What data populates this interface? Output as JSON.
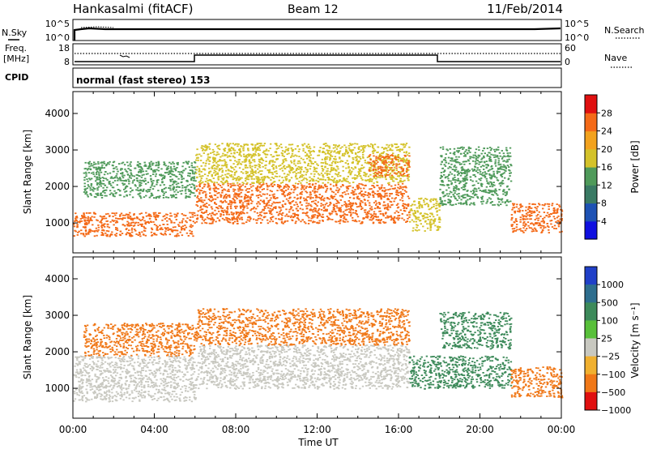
{
  "header": {
    "station": "Hankasalmi (fitACF)",
    "beam": "Beam 12",
    "date": "11/Feb/2014"
  },
  "top_panels": {
    "nsky_label": "N.Sky",
    "nsky_ticks": [
      "10^5",
      "10^0"
    ],
    "nsearch_label": "N.Search",
    "nsearch_ticks": [
      "10^5",
      "10^0"
    ],
    "freq_label_1": "Freq.",
    "freq_label_2": "[MHz]",
    "freq_ticks": [
      "18",
      "8"
    ],
    "nave_label": "Nave",
    "nave_ticks": [
      "60",
      "0"
    ],
    "cpid_label": "CPID",
    "cpid_value": "normal (fast stereo) 153"
  },
  "chart_data": [
    {
      "type": "heatmap",
      "parameter": "power",
      "ylabel": "Slant Range [km]",
      "ylim": [
        180,
        4600
      ],
      "yticks": [
        "1000",
        "2000",
        "3000",
        "4000"
      ],
      "xlim": [
        "00:00",
        "24:00"
      ],
      "colorbar": {
        "label": "Power [dB]",
        "ticks": [
          "4",
          "8",
          "12",
          "16",
          "20",
          "24",
          "28"
        ],
        "colors": [
          "#1010e0",
          "#1e52b4",
          "#3a7a64",
          "#4f9a5a",
          "#d4c22a",
          "#f2a21e",
          "#f46a18",
          "#e01010"
        ]
      },
      "echo_regions": [
        {
          "t_start": 0.0,
          "t_end": 6.0,
          "r_low": 650,
          "r_high": 1300,
          "power_db": 27
        },
        {
          "t_start": 0.5,
          "t_end": 6.0,
          "r_low": 1700,
          "r_high": 2700,
          "power_db": 14
        },
        {
          "t_start": 6.0,
          "t_end": 16.5,
          "r_low": 1000,
          "r_high": 2100,
          "power_db": 24
        },
        {
          "t_start": 6.0,
          "t_end": 16.5,
          "r_low": 2100,
          "r_high": 3200,
          "power_db": 16
        },
        {
          "t_start": 14.5,
          "t_end": 16.5,
          "r_low": 2300,
          "r_high": 2900,
          "power_db": 27
        },
        {
          "t_start": 16.5,
          "t_end": 18.0,
          "r_low": 800,
          "r_high": 1700,
          "power_db": 18
        },
        {
          "t_start": 18.0,
          "t_end": 21.5,
          "r_low": 1500,
          "r_high": 3100,
          "power_db": 12
        },
        {
          "t_start": 21.5,
          "t_end": 24.0,
          "r_low": 750,
          "r_high": 1550,
          "power_db": 27
        }
      ]
    },
    {
      "type": "heatmap",
      "parameter": "velocity",
      "ylabel": "Slant Range [km]",
      "xlabel": "Time UT",
      "ylim": [
        180,
        4600
      ],
      "yticks": [
        "1000",
        "2000",
        "3000",
        "4000"
      ],
      "xticks": [
        "00:00",
        "04:00",
        "08:00",
        "12:00",
        "16:00",
        "20:00",
        "00:00"
      ],
      "xlim": [
        "00:00",
        "24:00"
      ],
      "colorbar": {
        "label": "Velocity [m s⁻¹]",
        "ticks": [
          "1000",
          "500",
          "100",
          "25",
          "−25",
          "−100",
          "−500",
          "−1000"
        ],
        "colors": [
          "#2040c8",
          "#2e6e8e",
          "#3d8a5a",
          "#58c03a",
          "#c8c8c0",
          "#f0b030",
          "#f07818",
          "#e01010"
        ]
      },
      "echo_regions": [
        {
          "t_start": 0.0,
          "t_end": 6.0,
          "r_low": 650,
          "r_high": 1900,
          "velocity": 0
        },
        {
          "t_start": 0.5,
          "t_end": 6.0,
          "r_low": 1900,
          "r_high": 2800,
          "velocity": -250
        },
        {
          "t_start": 6.0,
          "t_end": 16.5,
          "r_low": 1000,
          "r_high": 2200,
          "velocity": 0
        },
        {
          "t_start": 6.0,
          "t_end": 16.5,
          "r_low": 2200,
          "r_high": 3200,
          "velocity": -250
        },
        {
          "t_start": 16.5,
          "t_end": 21.5,
          "r_low": 1000,
          "r_high": 1900,
          "velocity": 200
        },
        {
          "t_start": 18.0,
          "t_end": 21.5,
          "r_low": 2100,
          "r_high": 3100,
          "velocity": 400
        },
        {
          "t_start": 21.5,
          "t_end": 24.0,
          "r_low": 750,
          "r_high": 1600,
          "velocity": -300
        }
      ]
    }
  ]
}
